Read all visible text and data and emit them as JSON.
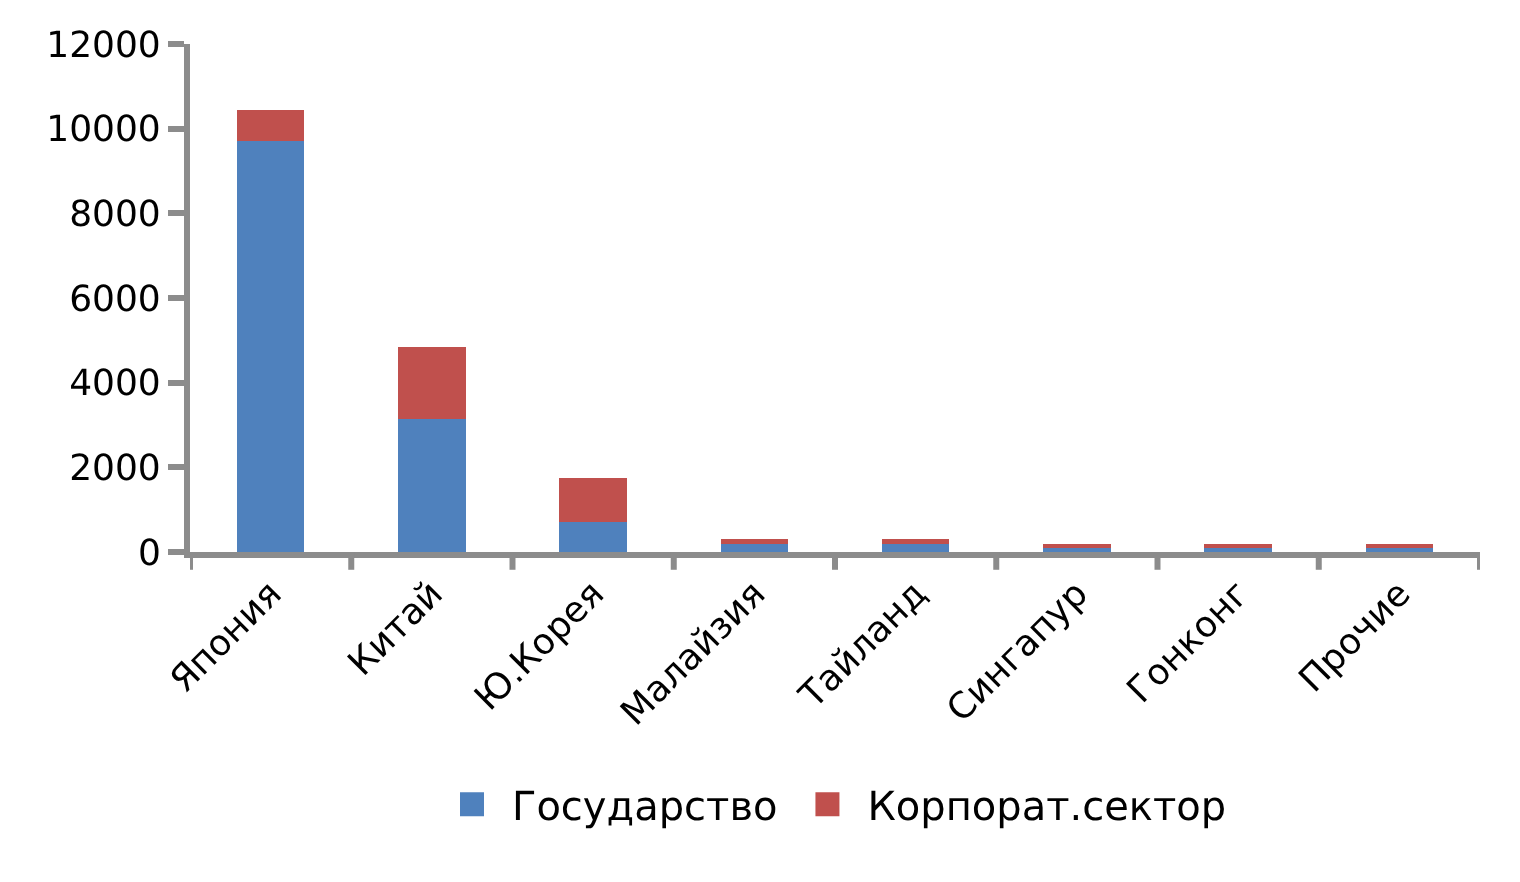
{
  "chart_data": {
    "type": "bar",
    "stacked": true,
    "categories": [
      "Япония",
      "Китай",
      "Ю.Корея",
      "Малайзия",
      "Тайланд",
      "Сингапур",
      "Гонконг",
      "Прочие"
    ],
    "series": [
      {
        "name": "Государство",
        "color": "#4f81bd",
        "values": [
          9700,
          3150,
          700,
          200,
          200,
          100,
          100,
          100
        ]
      },
      {
        "name": "Корпорат.сектор",
        "color": "#c0504d",
        "values": [
          750,
          1700,
          1050,
          100,
          100,
          100,
          100,
          100
        ]
      }
    ],
    "ylim": [
      0,
      12000
    ],
    "yticks": [
      0,
      2000,
      4000,
      6000,
      8000,
      10000,
      12000
    ],
    "legend": "bottom"
  }
}
